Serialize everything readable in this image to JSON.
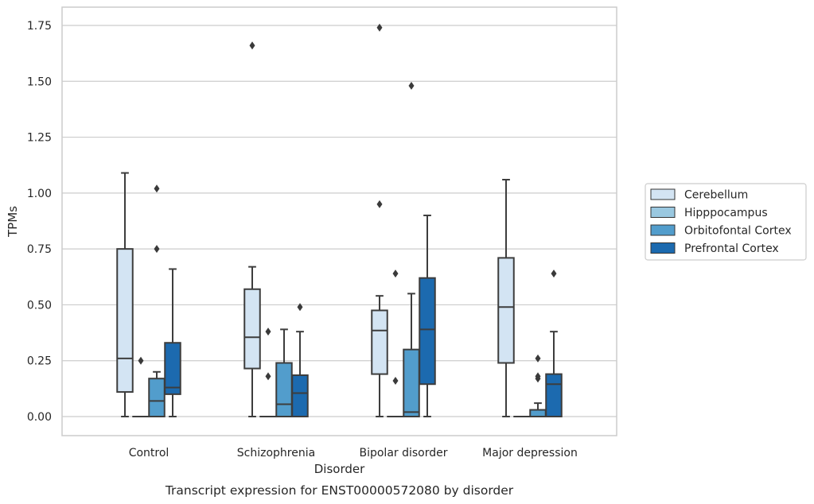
{
  "chart_data": {
    "type": "box",
    "title": "",
    "caption": "Transcript expression for ENST00000572080 by disorder",
    "xlabel": "Disorder",
    "ylabel": "TPMs",
    "ylim": [
      -0.085,
      1.83
    ],
    "yticks": [
      0.0,
      0.25,
      0.5,
      0.75,
      1.0,
      1.25,
      1.5,
      1.75
    ],
    "ytick_labels": [
      "0.00",
      "0.25",
      "0.50",
      "0.75",
      "1.00",
      "1.25",
      "1.50",
      "1.75"
    ],
    "grid": "horizontal",
    "legend_position": "right",
    "categories": [
      "Control",
      "Schizophrenia",
      "Bipolar disorder",
      "Major depression"
    ],
    "series": [
      {
        "name": "Cerebellum",
        "color": "#d3e4f3",
        "boxes": [
          {
            "whislo": 0.0,
            "q1": 0.11,
            "med": 0.26,
            "q3": 0.75,
            "whishi": 1.09,
            "fliers": []
          },
          {
            "whislo": 0.0,
            "q1": 0.215,
            "med": 0.355,
            "q3": 0.57,
            "whishi": 0.67,
            "fliers": [
              1.66
            ]
          },
          {
            "whislo": 0.0,
            "q1": 0.19,
            "med": 0.385,
            "q3": 0.475,
            "whishi": 0.54,
            "fliers": [
              0.95,
              1.74
            ]
          },
          {
            "whislo": 0.0,
            "q1": 0.24,
            "med": 0.49,
            "q3": 0.71,
            "whishi": 1.06,
            "fliers": []
          }
        ]
      },
      {
        "name": "Hipppocampus",
        "color": "#9ac8e0",
        "boxes": [
          {
            "whislo": 0.0,
            "q1": 0.0,
            "med": 0.0,
            "q3": 0.0,
            "whishi": 0.0,
            "fliers": [
              0.25
            ]
          },
          {
            "whislo": 0.0,
            "q1": 0.0,
            "med": 0.0,
            "q3": 0.0,
            "whishi": 0.0,
            "fliers": [
              0.18,
              0.38
            ]
          },
          {
            "whislo": 0.0,
            "q1": 0.0,
            "med": 0.0,
            "q3": 0.0,
            "whishi": 0.0,
            "fliers": [
              0.16,
              0.64
            ]
          },
          {
            "whislo": 0.0,
            "q1": 0.0,
            "med": 0.0,
            "q3": 0.0,
            "whishi": 0.0,
            "fliers": []
          }
        ]
      },
      {
        "name": "Orbitofontal Cortex",
        "color": "#529dcc",
        "boxes": [
          {
            "whislo": 0.0,
            "q1": 0.0,
            "med": 0.07,
            "q3": 0.17,
            "whishi": 0.2,
            "fliers": [
              0.75,
              1.02
            ]
          },
          {
            "whislo": 0.0,
            "q1": 0.0,
            "med": 0.055,
            "q3": 0.24,
            "whishi": 0.39,
            "fliers": []
          },
          {
            "whislo": 0.0,
            "q1": 0.0,
            "med": 0.02,
            "q3": 0.3,
            "whishi": 0.55,
            "fliers": [
              1.48
            ]
          },
          {
            "whislo": 0.0,
            "q1": 0.0,
            "med": 0.0,
            "q3": 0.03,
            "whishi": 0.06,
            "fliers": [
              0.17,
              0.18,
              0.26
            ]
          }
        ]
      },
      {
        "name": "Prefrontal Cortex",
        "color": "#1c6aaf",
        "boxes": [
          {
            "whislo": 0.0,
            "q1": 0.1,
            "med": 0.13,
            "q3": 0.33,
            "whishi": 0.66,
            "fliers": []
          },
          {
            "whislo": 0.0,
            "q1": 0.0,
            "med": 0.105,
            "q3": 0.185,
            "whishi": 0.38,
            "fliers": [
              0.49
            ]
          },
          {
            "whislo": 0.0,
            "q1": 0.145,
            "med": 0.39,
            "q3": 0.62,
            "whishi": 0.9,
            "fliers": []
          },
          {
            "whislo": 0.0,
            "q1": 0.0,
            "med": 0.145,
            "q3": 0.19,
            "whishi": 0.38,
            "fliers": [
              0.64
            ]
          }
        ]
      }
    ]
  },
  "colors": {
    "edge": "#3d3d3d",
    "grid": "#cccccc",
    "frame": "#cccccc"
  }
}
